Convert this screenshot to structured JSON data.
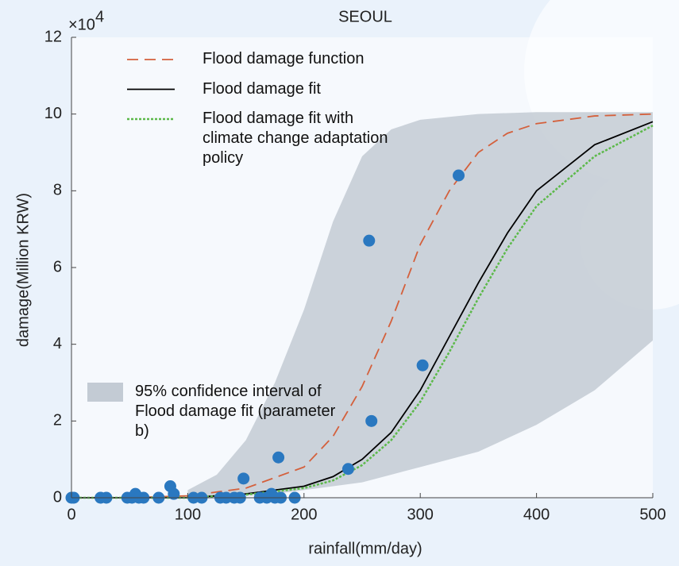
{
  "chart_data": {
    "type": "line",
    "title": "SEOUL",
    "x_label": "rainfall(mm/day)",
    "y_label": "damage(Million KRW)",
    "y_multiplier": {
      "base": "×10",
      "exponent": "4"
    },
    "xlim": [
      0,
      500
    ],
    "ylim": [
      0,
      12
    ],
    "xticks": [
      0,
      100,
      200,
      300,
      400,
      500
    ],
    "yticks": [
      0,
      2,
      4,
      6,
      8,
      10,
      12
    ],
    "series": [
      {
        "name": "95% confidence interval of Flood damage fit (parameter b)",
        "type": "band",
        "color": "#c3cbd4",
        "x": [
          100,
          125,
          150,
          175,
          200,
          225,
          250,
          275,
          300,
          350,
          400,
          450,
          500
        ],
        "upper": [
          0.2,
          0.6,
          1.5,
          3.0,
          4.9,
          7.2,
          8.9,
          9.6,
          9.85,
          10.0,
          10.05,
          10.05,
          10.05
        ],
        "lower": [
          0,
          0.02,
          0.05,
          0.1,
          0.2,
          0.3,
          0.4,
          0.6,
          0.8,
          1.2,
          1.9,
          2.8,
          4.1
        ]
      },
      {
        "name": "Flood damage function",
        "type": "line",
        "style": "dashed",
        "color": "#d4603c",
        "x": [
          0,
          50,
          100,
          150,
          200,
          225,
          250,
          275,
          300,
          325,
          350,
          375,
          400,
          450,
          500
        ],
        "values": [
          0,
          0,
          0.05,
          0.25,
          0.8,
          1.6,
          2.9,
          4.6,
          6.6,
          8.0,
          9.0,
          9.5,
          9.75,
          9.95,
          10.0
        ]
      },
      {
        "name": "Flood damage fit",
        "type": "line",
        "style": "solid",
        "color": "#000000",
        "x": [
          0,
          50,
          100,
          150,
          200,
          225,
          250,
          275,
          300,
          325,
          350,
          375,
          400,
          450,
          500
        ],
        "values": [
          0,
          0,
          0,
          0.1,
          0.3,
          0.55,
          1.0,
          1.7,
          2.8,
          4.2,
          5.6,
          6.9,
          8.0,
          9.2,
          9.8
        ]
      },
      {
        "name": "Flood damage fit with climate change adaptation policy",
        "type": "line",
        "style": "dotted",
        "color": "#5cb94a",
        "x": [
          0,
          50,
          100,
          150,
          200,
          225,
          250,
          275,
          300,
          325,
          350,
          375,
          400,
          450,
          500
        ],
        "values": [
          0,
          0,
          0,
          0.08,
          0.25,
          0.45,
          0.85,
          1.5,
          2.5,
          3.8,
          5.2,
          6.5,
          7.6,
          8.9,
          9.7
        ]
      },
      {
        "type": "scatter",
        "color": "#2a78c0",
        "x": [
          0,
          2,
          25,
          30,
          48,
          52,
          55,
          58,
          62,
          75,
          85,
          88,
          105,
          112,
          128,
          133,
          140,
          145,
          148,
          162,
          168,
          172,
          175,
          178,
          180,
          192,
          238,
          256,
          258,
          302,
          333
        ],
        "values": [
          0,
          0,
          0,
          0,
          0,
          0,
          0.1,
          0,
          0,
          0,
          0.3,
          0.1,
          0,
          0,
          0,
          0,
          0,
          0,
          0.5,
          0,
          0,
          0.1,
          0,
          1.05,
          0,
          0,
          0.75,
          6.7,
          2.0,
          3.45,
          8.4
        ]
      }
    ]
  }
}
